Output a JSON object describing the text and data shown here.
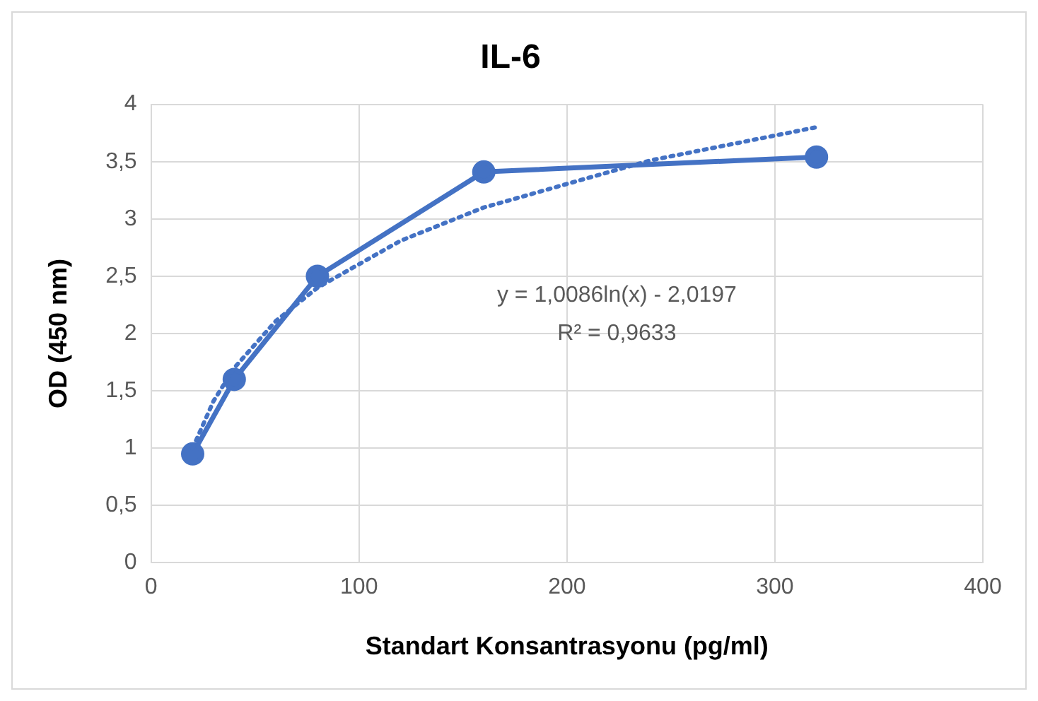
{
  "chart_data": {
    "type": "line",
    "title": "IL-6",
    "xlabel": "Standart Konsantrasyonu (pg/ml)",
    "ylabel": "OD (450 nm)",
    "xlim": [
      0,
      400
    ],
    "xticks": [
      0,
      100,
      200,
      300,
      400
    ],
    "ylim": [
      0,
      4
    ],
    "yticks": [
      0,
      {
        "value": 0.5,
        "label": "0,5"
      },
      1,
      {
        "value": 1.5,
        "label": "1,5"
      },
      2,
      {
        "value": 2.5,
        "label": "2,5"
      },
      3,
      {
        "value": 3.5,
        "label": "3,5"
      },
      4
    ],
    "grid": true,
    "legend": false,
    "series": [
      {
        "type": "line",
        "color": "#4472c4",
        "marker": "circle",
        "line_style": "solid",
        "x": [
          20,
          40,
          80,
          160,
          320
        ],
        "values": [
          0.95,
          1.6,
          2.5,
          3.41,
          3.54
        ]
      },
      {
        "type": "line",
        "color": "#4472c4",
        "marker": "none",
        "line_style": "dotted",
        "x": [
          20,
          30,
          40,
          60,
          80,
          120,
          160,
          240,
          320
        ],
        "values": [
          1.0,
          1.41,
          1.7,
          2.11,
          2.4,
          2.81,
          3.1,
          3.51,
          3.8
        ]
      }
    ],
    "annotations": [
      "y = 1,0086ln(x) - 2,0197",
      "R² = 0,9633"
    ]
  }
}
